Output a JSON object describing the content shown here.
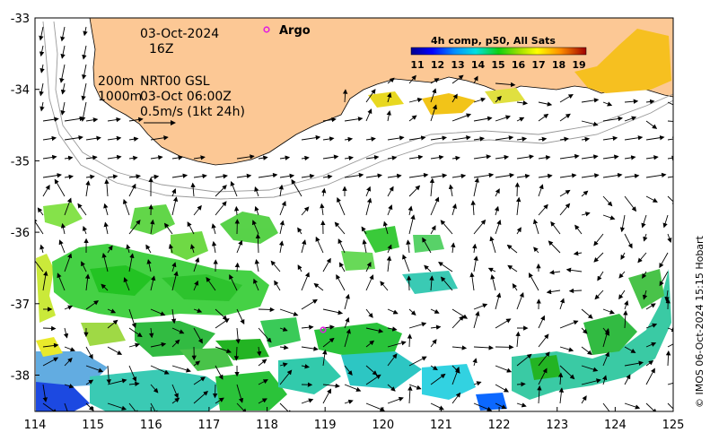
{
  "map": {
    "date": "03-Oct-2024",
    "hour": "16Z",
    "depth_200": "200m",
    "depth_1000": "1000m",
    "product": "NRT00 GSL",
    "current_time": "03-Oct 06:00Z",
    "scale_label": "0.5m/s (1kt 24h)",
    "argo_label": "Argo",
    "credit": "© IMOS 06-Oct-2024 15:15 Hobart",
    "lon_ticks": [
      "114",
      "115",
      "116",
      "117",
      "118",
      "119",
      "120",
      "121",
      "122",
      "123",
      "124",
      "125"
    ],
    "lat_ticks": [
      "-33",
      "-34",
      "-35",
      "-36",
      "-37",
      "-38"
    ],
    "colorbar": {
      "title": "4h comp, p50, All Sats",
      "labels": [
        "11",
        "12",
        "13",
        "14",
        "15",
        "16",
        "17",
        "18",
        "19"
      ]
    },
    "colors": {
      "land": "#fcc895",
      "ocean": "#ffffff",
      "argo": "#e020e0"
    }
  }
}
